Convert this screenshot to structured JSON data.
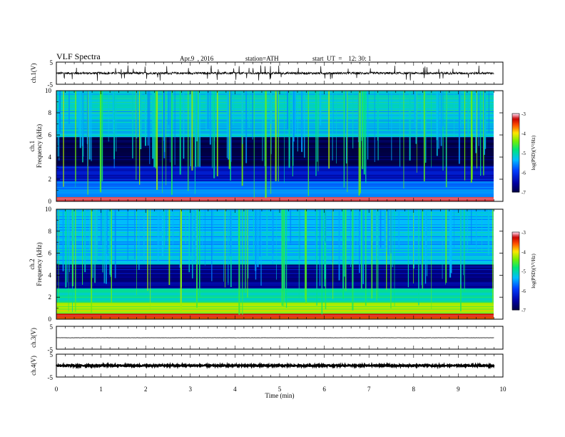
{
  "header": {
    "title": "VLF  Spectra",
    "date": "Apr.9  , 2016",
    "station": "station=ATH",
    "start": "start  UT  =    12: 30: 1"
  },
  "chart_data": [
    {
      "type": "line",
      "panel": "ch1-waveform",
      "ylabel": "ch.1(V)",
      "yticks": [
        "5",
        "-5"
      ],
      "ylim": [
        -5,
        5
      ],
      "xlim": [
        0,
        10
      ],
      "data_extent_min": 9.8,
      "description_values": {
        "baseline_V": 0.0,
        "noise_amplitude_V": 0.5,
        "spike_amplitude_V": 3.5
      }
    },
    {
      "type": "heatmap",
      "panel": "ch1-spectrogram",
      "ylabel": "Frequency  (kHz)",
      "channel_label": "ch.1",
      "yticks": [
        "10",
        "8",
        "6",
        "4",
        "2",
        "0"
      ],
      "ylim": [
        0,
        10
      ],
      "xlim": [
        0,
        10
      ],
      "colorbar": {
        "label": "log(PSD)(V²/Hz)",
        "ticks": [
          "-3",
          "-4",
          "-5",
          "-6",
          "-7"
        ],
        "range": [
          -7,
          -3
        ]
      },
      "bands": [
        {
          "f_low": 0.0,
          "f_high": 0.4,
          "logPSD": -3.2
        },
        {
          "f_low": 0.4,
          "f_high": 1.8,
          "logPSD": -5.6
        },
        {
          "f_low": 1.8,
          "f_high": 3.2,
          "logPSD": -6.3
        },
        {
          "f_low": 3.2,
          "f_high": 5.8,
          "logPSD": -7.0
        },
        {
          "f_low": 5.8,
          "f_high": 10.0,
          "logPSD": -5.2
        }
      ]
    },
    {
      "type": "heatmap",
      "panel": "ch2-spectrogram",
      "ylabel": "Frequency  (kHz)",
      "channel_label": "ch.2",
      "yticks": [
        "10",
        "8",
        "6",
        "4",
        "2",
        "0"
      ],
      "ylim": [
        0,
        10
      ],
      "xlim": [
        0,
        10
      ],
      "colorbar": {
        "label": "log(PSD)(V²/Hz)",
        "ticks": [
          "-3",
          "-4",
          "-5",
          "-6",
          "-7"
        ],
        "range": [
          -7,
          -3
        ]
      },
      "bands": [
        {
          "f_low": 0.0,
          "f_high": 0.5,
          "logPSD": -3.3
        },
        {
          "f_low": 0.5,
          "f_high": 1.5,
          "logPSD": -4.2
        },
        {
          "f_low": 1.5,
          "f_high": 2.8,
          "logPSD": -5.0
        },
        {
          "f_low": 2.8,
          "f_high": 5.0,
          "logPSD": -6.6
        },
        {
          "f_low": 5.0,
          "f_high": 10.0,
          "logPSD": -5.3
        }
      ]
    },
    {
      "type": "line",
      "panel": "ch3-waveform",
      "ylabel": "ch.3(V)",
      "yticks": [
        "5",
        "-5"
      ],
      "ylim": [
        -5,
        5
      ],
      "xlim": [
        0,
        10
      ],
      "description_values": {
        "baseline_V": 0.0,
        "noise_amplitude_V": 0.05
      }
    },
    {
      "type": "line",
      "panel": "ch4-waveform",
      "ylabel": "ch.4(V)",
      "yticks": [
        "5",
        "-5"
      ],
      "ylim": [
        -5,
        5
      ],
      "xlim": [
        0,
        10
      ],
      "description_values": {
        "baseline_V": 0.0,
        "noise_amplitude_V": 0.3
      }
    }
  ],
  "xaxis": {
    "label": "Time  (min)",
    "ticks": [
      "0",
      "1",
      "2",
      "3",
      "4",
      "5",
      "6",
      "7",
      "8",
      "9",
      "10"
    ]
  }
}
